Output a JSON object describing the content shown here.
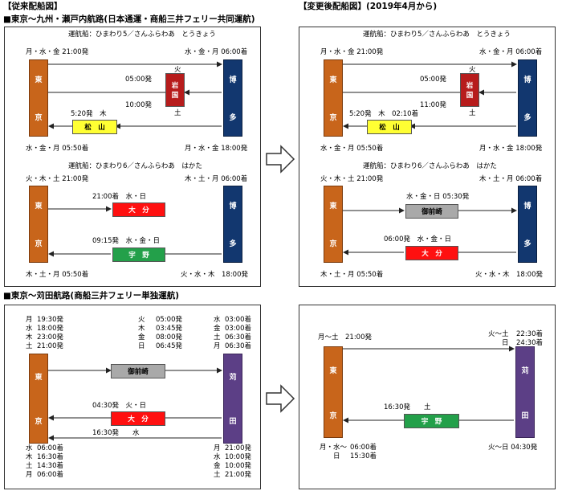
{
  "headings": {
    "old_plan": "【従来配船図】",
    "new_plan": "【変更後配船図】(2019年4月から)",
    "route1": "■東京～九州・瀬戸内航路(日本通運・商船三井フェリー共同運航)",
    "route2": "■東京～苅田航路(商船三井フェリー単独運航)"
  },
  "ports": {
    "tokyo": [
      "東",
      "京"
    ],
    "hakata": [
      "博",
      "多"
    ],
    "kanda": [
      "苅",
      "田"
    ],
    "iwakuni": [
      "岩",
      "国"
    ],
    "matsuyama": "松　山",
    "oita": "大　分",
    "uno": "宇　野",
    "omaezaki": "御前崎"
  },
  "p1": {
    "ships": "運航船：ひまわり5／さんふらわあ　とうきょう",
    "top_left": "月・水・金 21:00発",
    "top_right": "水・金・月 06:00着",
    "iw_day1": "火",
    "iw_time1": "05:00発",
    "iw_time2": "10:00発",
    "iw_day2": "土",
    "mat_time": "5:20発　木",
    "bot_left": "水・金・月 05:50着",
    "bot_right": "月・水・金 18:00発"
  },
  "p2": {
    "ships": "運航船：ひまわり5／さんふらわあ　とうきょう",
    "top_left": "月・水・金 21:00発",
    "top_right": "水・金・月 06:00着",
    "iw_day1": "火",
    "iw_time1": "05:00発",
    "iw_time2": "11:00発",
    "iw_day2": "土",
    "mat_time": "5:20発　木　02:10着",
    "bot_left": "水・金・月 05:50着",
    "bot_right": "月・水・金 18:00発"
  },
  "p3": {
    "ships": "運航船：ひまわり6／さんふらわあ　はかた",
    "top_left": "火・木・土 21:00発",
    "top_right": "木・土・月 06:00着",
    "oita_label": "21:00着　水・日",
    "uno_label": "09:15発　水・金・日",
    "bot_left": "木・土・月 05:50着",
    "bot_right": "火・水・木　18:00発"
  },
  "p4": {
    "ships": "運航船：ひまわり6／さんふらわあ　はかた",
    "top_left": "火・木・土 21:00発",
    "top_right": "木・土・月 06:00着",
    "omz_label": "水・金・日 05:30発",
    "oita_label": "06:00発　水・金・日",
    "bot_left": "木・土・月 05:50着",
    "bot_right": "火・水・木　18:00発"
  },
  "p5": {
    "dep_days": "月\n水\n木\n土",
    "dep_times": "19:30発\n18:00発\n23:00発\n21:00発",
    "mid_days": "火\n木\n金\n日",
    "mid_times": "05:00発\n03:45発\n08:00発\n06:45発",
    "arr_days": "水\n金\n土\n月",
    "arr_times": "03:00着\n03:00着\n06:30着\n06:30着",
    "oita_label": "04:30発　火・日",
    "bottom_label": "16:30発　　水",
    "b_days_l": "水\n木\n土\n月",
    "b_times_l": "06:00着\n16:30着\n14:30着\n06:00着",
    "b_days_r": "月\n水\n金\n土",
    "b_times_r": "21:00発\n10:00発\n10:00発\n21:00発"
  },
  "p6": {
    "top_left": "月～土　21:00発",
    "top_right_days": "火～土\n　　日",
    "top_right_times": "22:30着\n24:30着",
    "uno_label": "16:30発　　土",
    "bot_left_days": "月・水～\n　　日",
    "bot_left_times": "06:00着\n15:30着",
    "bot_right": "火～日 04:30発"
  }
}
